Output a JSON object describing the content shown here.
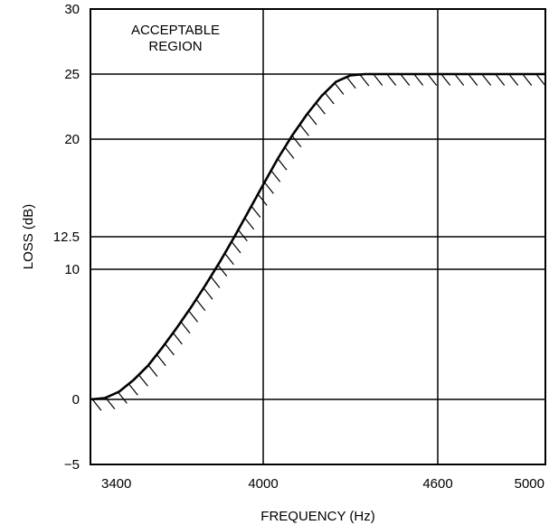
{
  "chart_data": {
    "type": "line",
    "xlabel": "FREQUENCY (Hz)",
    "ylabel": "LOSS (dB)",
    "xlim": [
      3400,
      5000
    ],
    "ylim": [
      -5,
      30
    ],
    "x_ticks": [
      3400,
      4000,
      4600,
      5000
    ],
    "y_ticks": [
      -5,
      0,
      10,
      12.5,
      20,
      25,
      30
    ],
    "x_tick_labels": [
      "3400",
      "4000",
      "4600",
      "5000"
    ],
    "y_tick_labels": [
      "−5",
      "0",
      "10",
      "12.5",
      "20",
      "25",
      "30"
    ],
    "grid": true,
    "annotations": [
      {
        "text_lines": [
          "ACCEPTABLE",
          "REGION"
        ],
        "position": "top-left"
      }
    ],
    "series": [
      {
        "style": "solid line with diagonal hatching below (boundary)",
        "x": [
          3400,
          3450,
          3500,
          3550,
          3600,
          3650,
          3700,
          3750,
          3800,
          3850,
          3900,
          3950,
          4000,
          4050,
          4100,
          4150,
          4200,
          4250,
          4300,
          4350,
          4400,
          4450,
          4500,
          4550,
          4600,
          4700,
          4800,
          4900,
          5000
        ],
        "y": [
          0,
          0.1,
          0.6,
          1.5,
          2.6,
          4.0,
          5.5,
          7.1,
          8.8,
          10.6,
          12.5,
          14.5,
          16.5,
          18.5,
          20.3,
          21.9,
          23.3,
          24.4,
          24.9,
          25,
          25,
          25,
          25,
          25,
          25,
          25,
          25,
          25,
          25
        ]
      }
    ]
  }
}
